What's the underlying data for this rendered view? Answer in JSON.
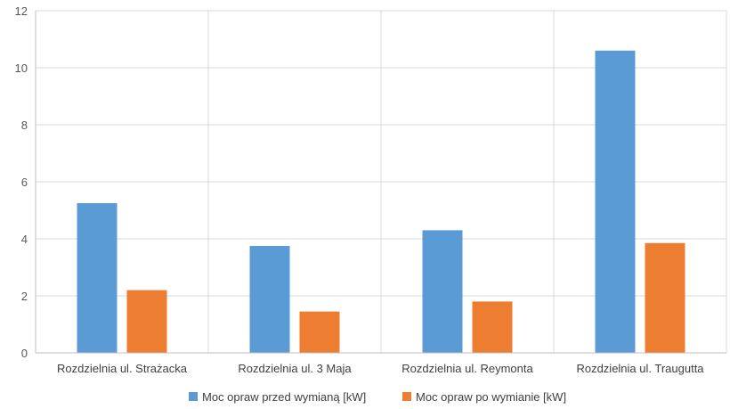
{
  "chart_data": {
    "type": "bar",
    "categories": [
      "Rozdzielnia ul. Strażacka",
      "Rozdzielnia ul. 3 Maja",
      "Rozdzielnia ul. Reymonta",
      "Rozdzielnia ul. Traugutta"
    ],
    "series": [
      {
        "name": "Moc opraw przed wymianą [kW]",
        "color": "#5b9bd5",
        "values": [
          5.25,
          3.75,
          4.3,
          10.6
        ]
      },
      {
        "name": "Moc opraw po wymianie [kW]",
        "color": "#ed7d31",
        "values": [
          2.2,
          1.45,
          1.8,
          3.85
        ]
      }
    ],
    "ylim": [
      0,
      12
    ],
    "yticks": [
      "0",
      "2",
      "4",
      "6",
      "8",
      "10",
      "12"
    ],
    "grid": true,
    "legend_position": "bottom"
  }
}
